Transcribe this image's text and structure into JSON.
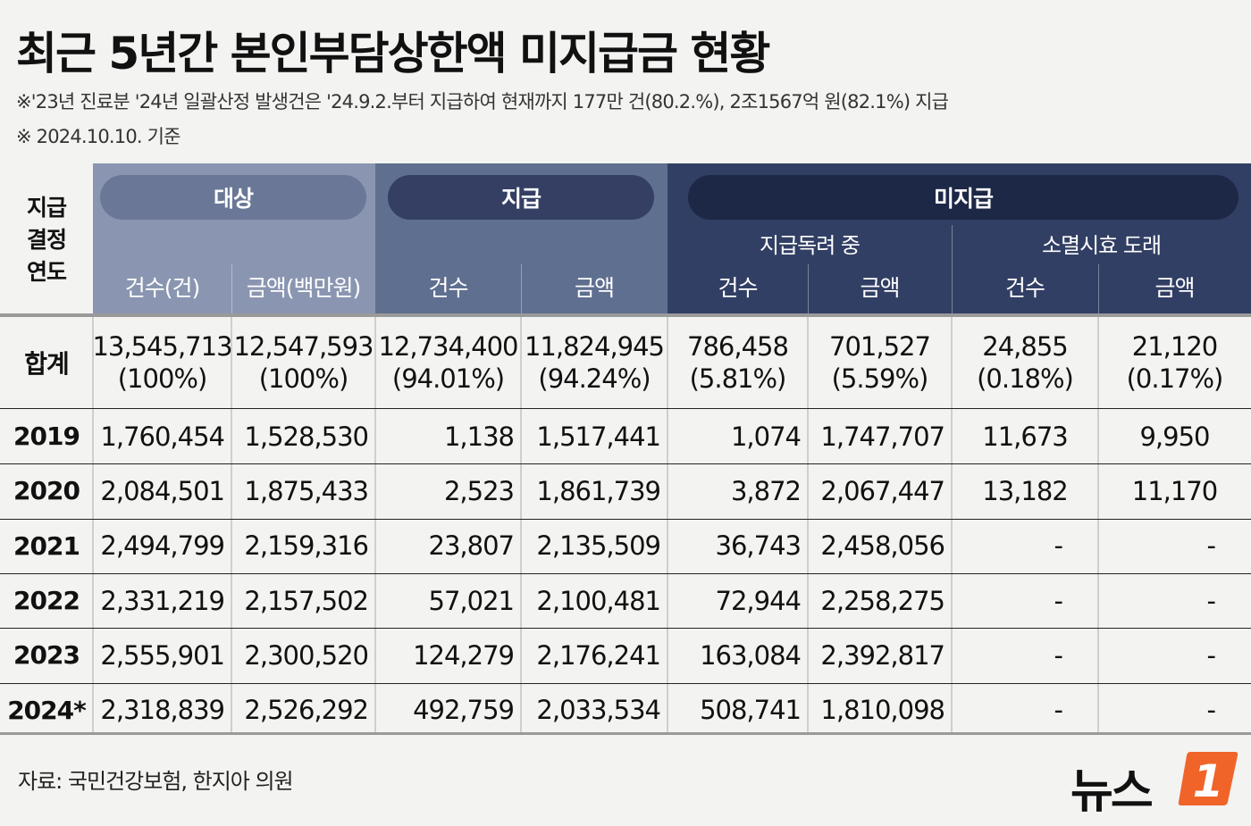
{
  "title": "최근 5년간 본인부담상한액 미지급금 현황",
  "notes": [
    "※'23년 진료분 '24년 일괄산정 발생건은 '24.9.2.부터 지급하여 현재까지 177만 건(80.2.%), 2조1567억 원(82.1%) 지급",
    "※ 2024.10.10. 기준"
  ],
  "header": {
    "year_label_lines": [
      "지급",
      "결정",
      "연도"
    ],
    "groups": {
      "target": "대상",
      "paid": "지급",
      "unpaid": "미지급"
    },
    "subgroups": {
      "pending": "지급독려 중",
      "expired": "소멸시효 도래"
    },
    "columns": {
      "target_count": "건수(건)",
      "target_amount": "금액(백만원)",
      "paid_count": "건수",
      "paid_amount": "금액",
      "pending_count": "건수",
      "pending_amount": "금액",
      "expired_count": "건수",
      "expired_amount": "금액"
    }
  },
  "total": {
    "label": "합계",
    "cells": [
      [
        "13,545,713",
        "(100%)"
      ],
      [
        "12,547,593",
        "(100%)"
      ],
      [
        "12,734,400",
        "(94.01%)"
      ],
      [
        "11,824,945",
        "(94.24%)"
      ],
      [
        "786,458",
        "(5.81%)"
      ],
      [
        "701,527",
        "(5.59%)"
      ],
      [
        "24,855",
        "(0.18%)"
      ],
      [
        "21,120",
        "(0.17%)"
      ]
    ]
  },
  "rows": [
    {
      "year": "2019",
      "cells": [
        "1,760,454",
        "1,528,530",
        "1,138",
        "1,517,441",
        "1,074",
        "1,747,707",
        "11,673",
        "9,950"
      ]
    },
    {
      "year": "2020",
      "cells": [
        "2,084,501",
        "1,875,433",
        "2,523",
        "1,861,739",
        "3,872",
        "2,067,447",
        "13,182",
        "11,170"
      ]
    },
    {
      "year": "2021",
      "cells": [
        "2,494,799",
        "2,159,316",
        "23,807",
        "2,135,509",
        "36,743",
        "2,458,056",
        "-",
        "-"
      ]
    },
    {
      "year": "2022",
      "cells": [
        "2,331,219",
        "2,157,502",
        "57,021",
        "2,100,481",
        "72,944",
        "2,258,275",
        "-",
        "-"
      ]
    },
    {
      "year": "2023",
      "cells": [
        "2,555,901",
        "2,300,520",
        "124,279",
        "2,176,241",
        "163,084",
        "2,392,817",
        "-",
        "-"
      ]
    },
    {
      "year": "2024*",
      "cells": [
        "2,318,839",
        "2,526,292",
        "492,759",
        "2,033,534",
        "508,741",
        "1,810,098",
        "-",
        "-"
      ]
    }
  ],
  "source": "자료: 국민건강보험, 한지아 의원",
  "logo": {
    "text": "뉴스",
    "mark": "1",
    "accent": "#f0642a"
  },
  "colors": {
    "target": "#8a96b1",
    "paid": "#5f6f90",
    "unpaid": "#323f64",
    "pill_unpaid": "#1d2846"
  }
}
